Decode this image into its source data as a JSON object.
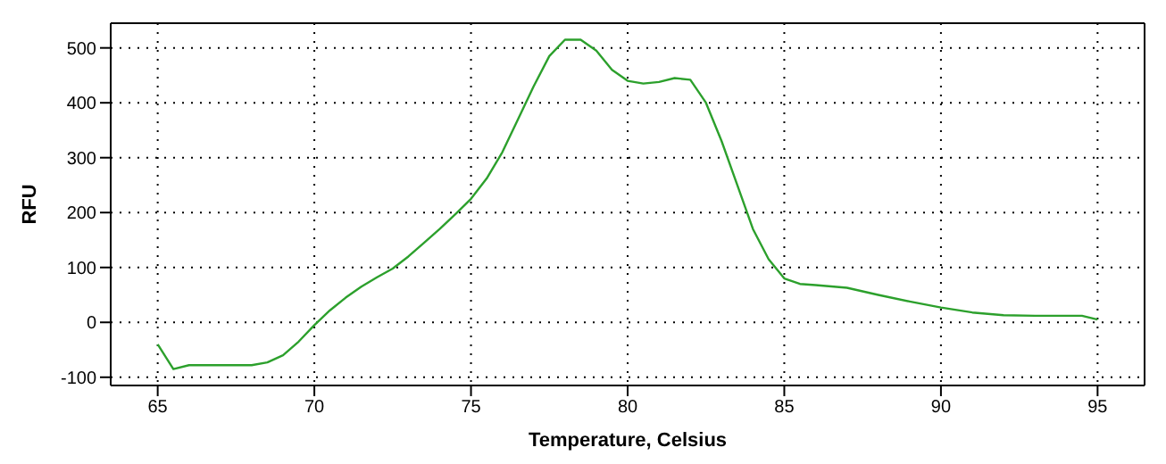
{
  "chart_data": {
    "type": "line",
    "xlabel": "Temperature, Celsius",
    "ylabel": "RFU",
    "x": [
      65,
      65.5,
      66,
      67,
      68,
      68.5,
      69,
      69.5,
      70,
      70.5,
      71,
      71.5,
      72,
      72.5,
      73,
      73.5,
      74,
      74.5,
      75,
      75.5,
      76,
      76.5,
      77,
      77.5,
      78,
      78.5,
      79,
      79.5,
      80,
      80.5,
      81,
      81.5,
      82,
      82.5,
      83,
      83.5,
      84,
      84.5,
      85,
      85.5,
      86,
      87,
      88,
      89,
      90,
      91,
      92,
      93,
      94,
      94.5,
      95
    ],
    "series": [
      {
        "color": "#2ca02c",
        "values": [
          -40,
          -85,
          -78,
          -78,
          -78,
          -73,
          -60,
          -35,
          -5,
          22,
          45,
          65,
          82,
          98,
          120,
          145,
          170,
          197,
          225,
          262,
          310,
          370,
          430,
          485,
          515,
          515,
          495,
          460,
          440,
          435,
          438,
          445,
          442,
          400,
          330,
          250,
          170,
          115,
          80,
          70,
          68,
          63,
          50,
          38,
          27,
          18,
          13,
          12,
          12,
          12,
          5
        ]
      }
    ],
    "xlim": [
      63.5,
      96.5
    ],
    "xticks": [
      65,
      70,
      75,
      80,
      85,
      90,
      95
    ],
    "ylim": [
      -115,
      545
    ],
    "yticks": [
      -100,
      0,
      100,
      200,
      300,
      400,
      500
    ],
    "grid": true,
    "marker": "none",
    "line_style": "solid"
  }
}
